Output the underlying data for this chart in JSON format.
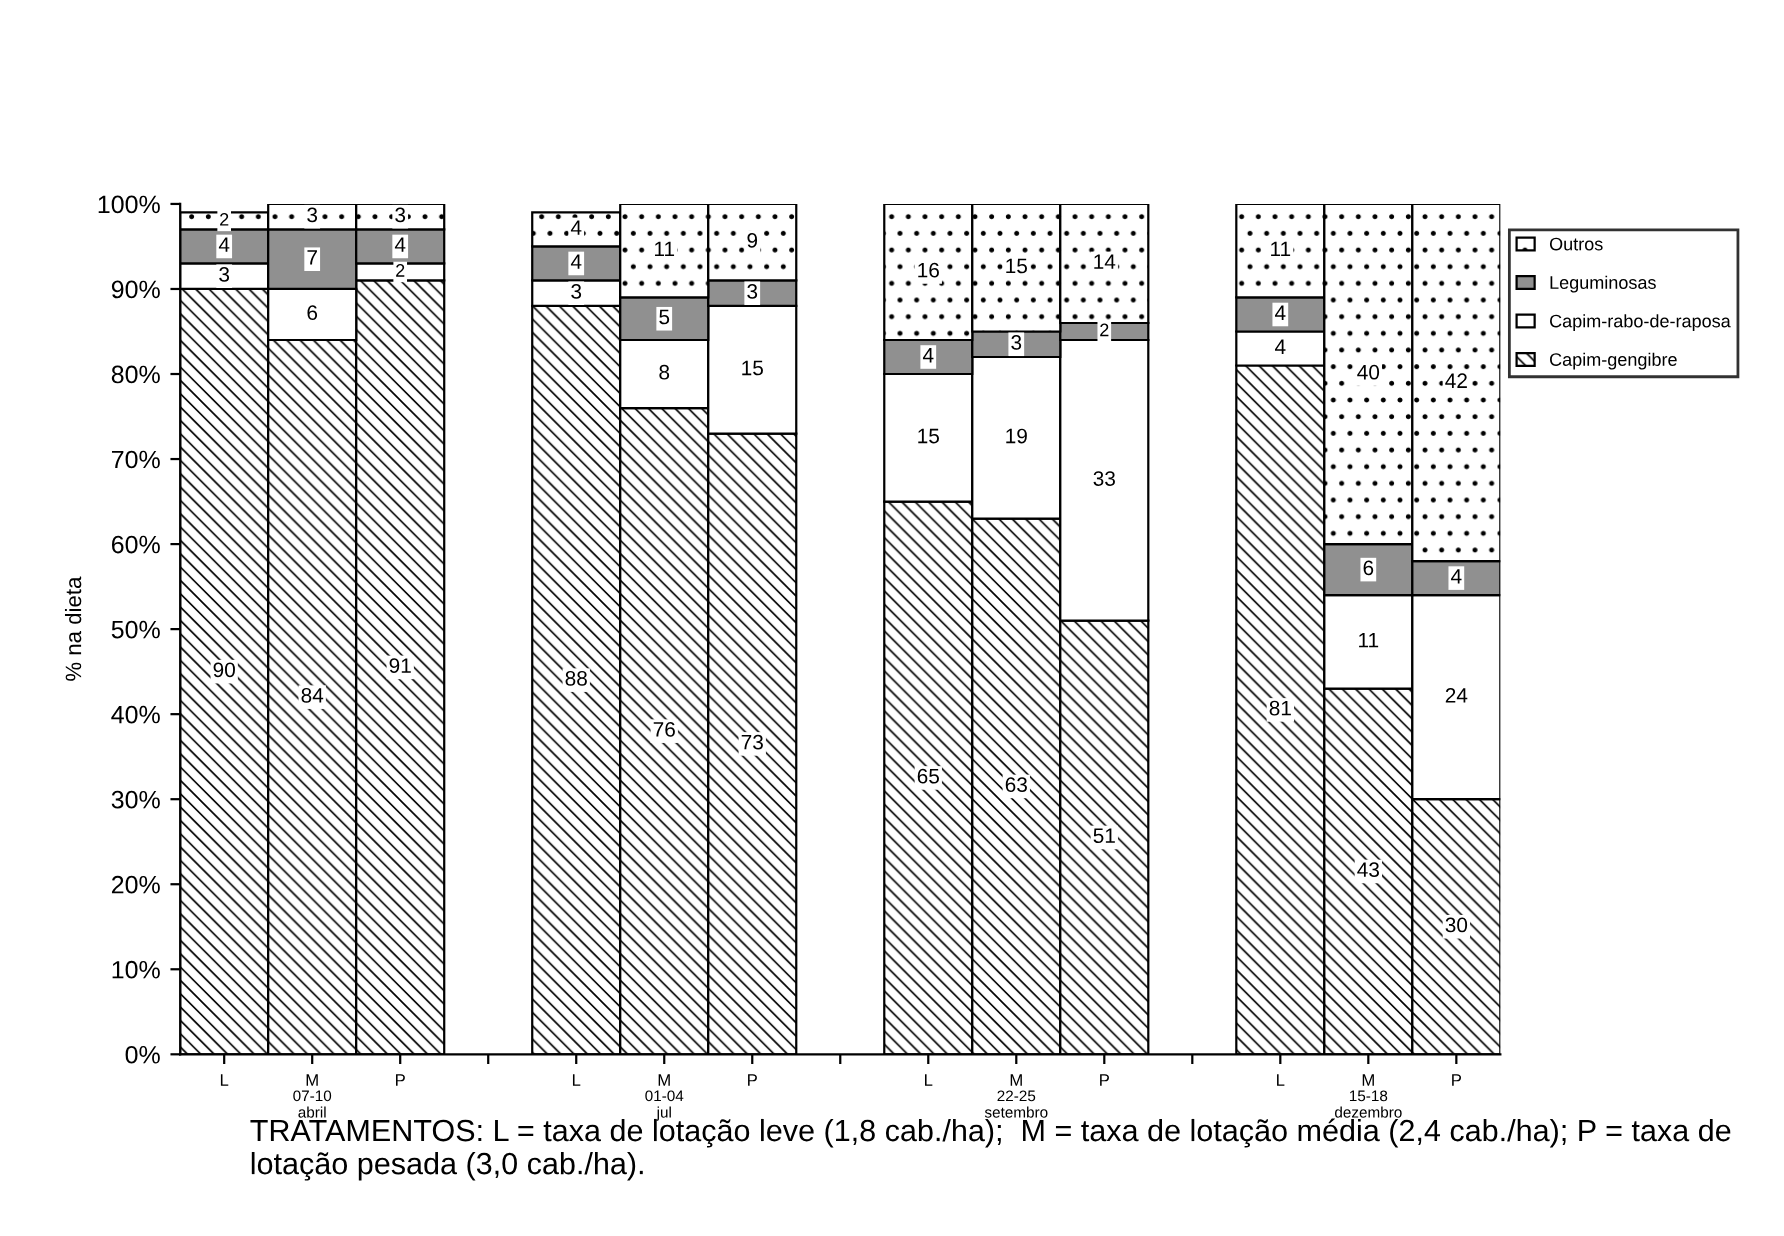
{
  "chart_data": {
    "type": "bar",
    "stacked": true,
    "ylabel": "% na dieta",
    "categories": [
      "L",
      "M",
      "P",
      null,
      "L",
      "M",
      "P",
      null,
      "L",
      "M",
      "P",
      null,
      "L",
      "M",
      "P"
    ],
    "series": [
      {
        "name": "Capim-gengibre",
        "color": "#000000",
        "values": [
          90,
          84,
          91,
          null,
          88,
          76,
          73,
          null,
          65,
          63,
          51,
          null,
          81,
          43,
          30
        ]
      },
      {
        "name": "Capim-rabo-de-raposa",
        "color": "#ffffff",
        "values": [
          3,
          6,
          2,
          null,
          3,
          8,
          15,
          null,
          15,
          19,
          33,
          null,
          4,
          11,
          24
        ]
      },
      {
        "name": "Leguminosas",
        "color": "#909090",
        "values": [
          4,
          7,
          4,
          null,
          4,
          5,
          3,
          null,
          4,
          3,
          2,
          null,
          4,
          6,
          4
        ]
      },
      {
        "name": "Outros",
        "color": "#000000",
        "values": [
          2,
          3,
          3,
          null,
          4,
          11,
          9,
          null,
          16,
          15,
          14,
          null,
          11,
          40,
          42
        ]
      }
    ],
    "ylim": [
      0,
      100
    ],
    "yticks": [
      {
        "value": 0,
        "label": "0%"
      },
      {
        "value": 10,
        "label": "10%"
      },
      {
        "value": 20,
        "label": "20%"
      },
      {
        "value": 30,
        "label": "30%"
      },
      {
        "value": 40,
        "label": "40%"
      },
      {
        "value": 50,
        "label": "50%"
      },
      {
        "value": 60,
        "label": "60%"
      },
      {
        "value": 70,
        "label": "70%"
      },
      {
        "value": 80,
        "label": "80%"
      },
      {
        "value": 90,
        "label": "90%"
      },
      {
        "value": 100,
        "label": "100%"
      }
    ],
    "data_labels": true,
    "grid": false,
    "legend": "top right",
    "annotations": [
      "07-10 abril",
      "01-04 jul",
      "22-25 setembro",
      "15-18 dezembro",
      "TRATAMENTOS: L = taxa de lotação leve (1,8 cab./ha);  M = taxa de lotação média (2,4 cab./ha); P = taxa de lotação pesada (3,0 cab./ha)."
    ]
  }
}
